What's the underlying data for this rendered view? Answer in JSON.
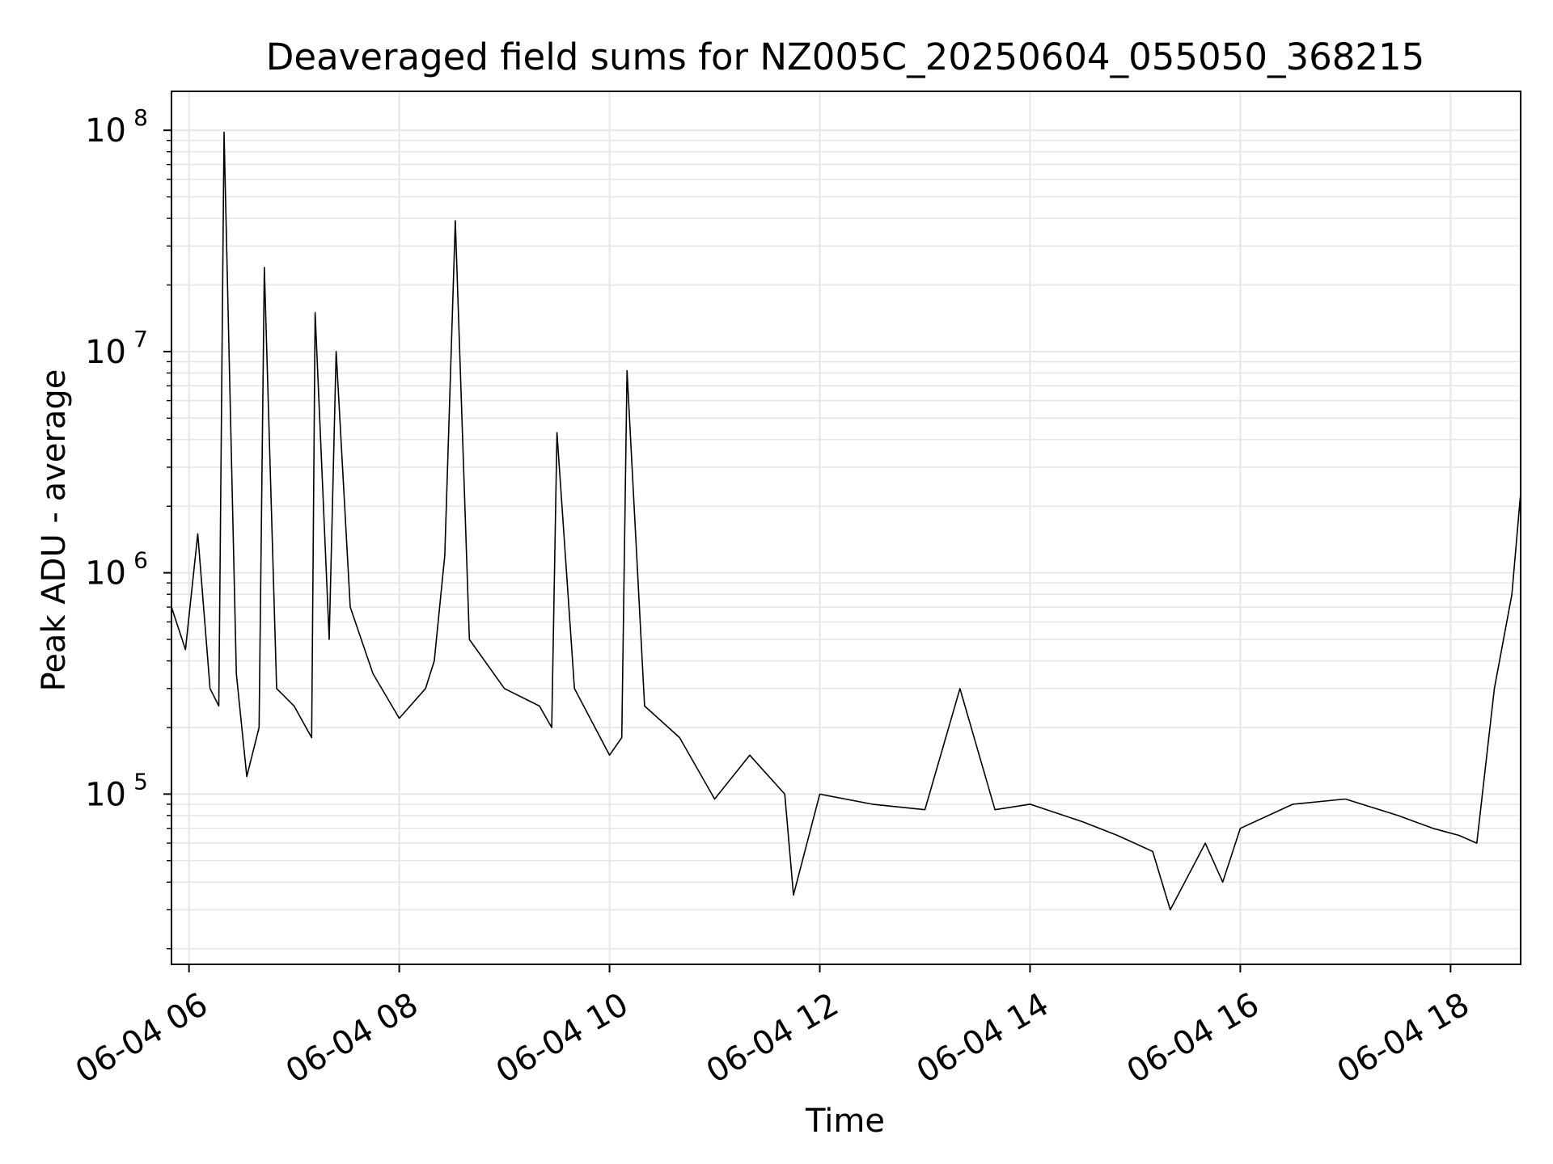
{
  "chart_data": {
    "type": "line",
    "title": "Deaveraged field sums for NZ005C_20250604_055050_368215",
    "xlabel": "Time",
    "ylabel": "Peak ADU - average",
    "yscale": "log",
    "ylim": [
      17000,
      150000000
    ],
    "xlim": [
      "2025-06-04 05:50",
      "2025-06-04 18:40"
    ],
    "grid": true,
    "grid_color": "#e6e6e6",
    "line_color": "#000000",
    "x_tick_labels": [
      "06-04 06",
      "06-04 08",
      "06-04 10",
      "06-04 12",
      "06-04 14",
      "06-04 16",
      "06-04 18"
    ],
    "y_tick_labels": [
      {
        "base": "10",
        "exp": "5"
      },
      {
        "base": "10",
        "exp": "6"
      },
      {
        "base": "10",
        "exp": "7"
      },
      {
        "base": "10",
        "exp": "8"
      }
    ],
    "series": [
      {
        "x": [
          "2025-06-04 05:50",
          "2025-06-04 05:58",
          "2025-06-04 06:05",
          "2025-06-04 06:12",
          "2025-06-04 06:17",
          "2025-06-04 06:20",
          "2025-06-04 06:27",
          "2025-06-04 06:33",
          "2025-06-04 06:40",
          "2025-06-04 06:43",
          "2025-06-04 06:50",
          "2025-06-04 07:00",
          "2025-06-04 07:10",
          "2025-06-04 07:12",
          "2025-06-04 07:20",
          "2025-06-04 07:24",
          "2025-06-04 07:32",
          "2025-06-04 07:45",
          "2025-06-04 08:00",
          "2025-06-04 08:15",
          "2025-06-04 08:20",
          "2025-06-04 08:26",
          "2025-06-04 08:32",
          "2025-06-04 08:40",
          "2025-06-04 09:00",
          "2025-06-04 09:20",
          "2025-06-04 09:27",
          "2025-06-04 09:30",
          "2025-06-04 09:40",
          "2025-06-04 10:00",
          "2025-06-04 10:07",
          "2025-06-04 10:10",
          "2025-06-04 10:20",
          "2025-06-04 10:40",
          "2025-06-04 11:00",
          "2025-06-04 11:20",
          "2025-06-04 11:40",
          "2025-06-04 11:45",
          "2025-06-04 12:00",
          "2025-06-04 12:30",
          "2025-06-04 13:00",
          "2025-06-04 13:20",
          "2025-06-04 13:40",
          "2025-06-04 14:00",
          "2025-06-04 14:30",
          "2025-06-04 14:50",
          "2025-06-04 15:10",
          "2025-06-04 15:20",
          "2025-06-04 15:40",
          "2025-06-04 15:50",
          "2025-06-04 16:00",
          "2025-06-04 16:30",
          "2025-06-04 17:00",
          "2025-06-04 17:30",
          "2025-06-04 17:50",
          "2025-06-04 18:05",
          "2025-06-04 18:15",
          "2025-06-04 18:25",
          "2025-06-04 18:35",
          "2025-06-04 18:40"
        ],
        "y": [
          700000,
          450000,
          1500000,
          300000,
          250000,
          98000000,
          350000,
          120000,
          200000,
          24000000,
          300000,
          250000,
          180000,
          15000000,
          500000,
          10000000,
          700000,
          350000,
          220000,
          300000,
          400000,
          1200000,
          39000000,
          500000,
          300000,
          250000,
          200000,
          4300000,
          300000,
          150000,
          180000,
          8200000,
          250000,
          180000,
          95000,
          150000,
          100000,
          35000,
          100000,
          90000,
          85000,
          300000,
          85000,
          90000,
          75000,
          65000,
          55000,
          30000,
          60000,
          40000,
          70000,
          90000,
          95000,
          80000,
          70000,
          65000,
          60000,
          300000,
          800000,
          2300000
        ]
      }
    ]
  }
}
